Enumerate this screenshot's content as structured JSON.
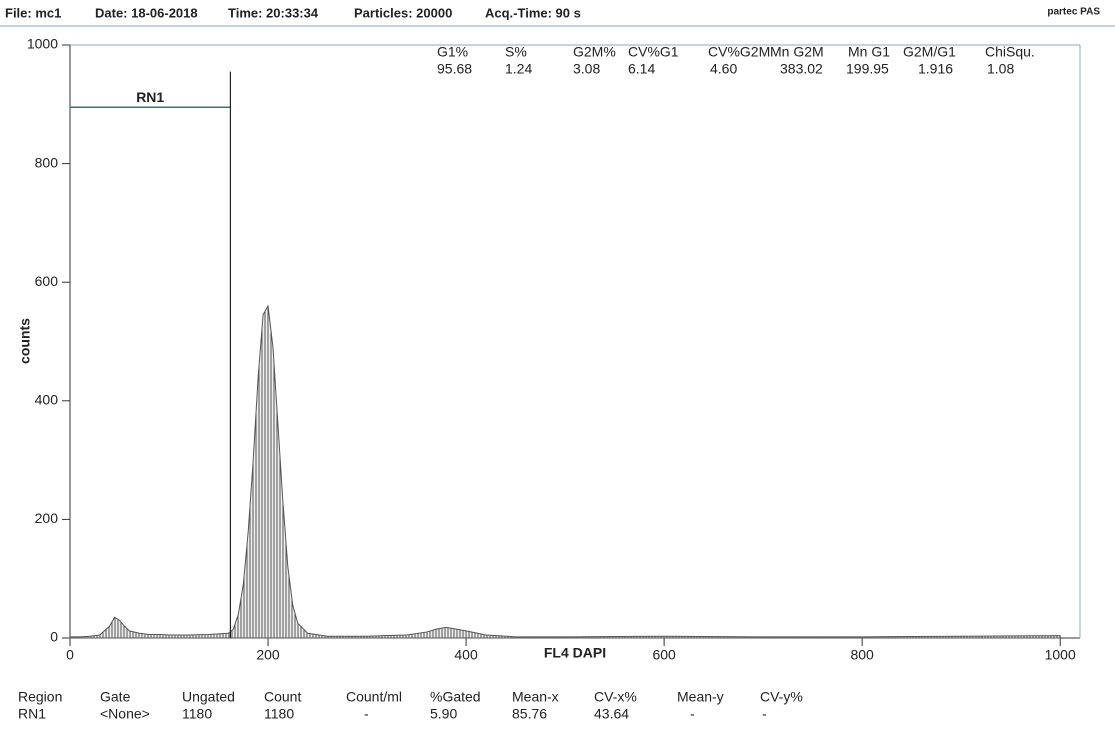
{
  "header": {
    "file": "File: mc1",
    "date": "Date: 18-06-2018",
    "time": "Time: 20:33:34",
    "particles": "Particles: 20000",
    "acq_time": "Acq.-Time: 90 s",
    "brand": "partec PAS"
  },
  "chart_data": {
    "type": "area",
    "x_label": "FL4  DAPI",
    "y_label": "counts",
    "series": [
      {
        "color": "#555555",
        "x": [
          0,
          10,
          20,
          30,
          40,
          45,
          50,
          55,
          60,
          70,
          80,
          90,
          100,
          120,
          140,
          160,
          165,
          170,
          175,
          180,
          185,
          190,
          195,
          200,
          205,
          210,
          215,
          220,
          225,
          230,
          240,
          260,
          300,
          340,
          360,
          370,
          380,
          390,
          400,
          420,
          450,
          500,
          600,
          700,
          800,
          900,
          1000
        ],
        "values": [
          2,
          2,
          3,
          5,
          20,
          35,
          30,
          20,
          12,
          8,
          6,
          6,
          5,
          5,
          6,
          8,
          15,
          40,
          90,
          180,
          300,
          440,
          545,
          560,
          490,
          360,
          230,
          120,
          55,
          25,
          8,
          3,
          3,
          5,
          10,
          15,
          18,
          15,
          12,
          5,
          2,
          2,
          3,
          2,
          2,
          3,
          4
        ]
      }
    ],
    "xlim": [
      0,
      1020
    ],
    "ylim": [
      0,
      1000
    ],
    "xticks": [
      0,
      200,
      400,
      600,
      800,
      1000
    ],
    "yticks": [
      0,
      200,
      400,
      600,
      800,
      1000
    ],
    "region": {
      "label": "RN1",
      "x": [
        0,
        162
      ],
      "y": 895,
      "top": 955
    }
  },
  "stats": {
    "headers": [
      "G1%",
      "S%",
      "G2M%",
      "CV%G1",
      "CV%G2M",
      "Mn G2M",
      "Mn G1",
      "G2M/G1",
      "ChiSqu."
    ],
    "values": [
      "95.68",
      "1.24",
      "3.08",
      "6.14",
      "4.60",
      "383.02",
      "199.95",
      "1.916",
      "1.08"
    ]
  },
  "region_table": {
    "headers": [
      "Region",
      "Gate",
      "Ungated",
      "Count",
      "Count/ml",
      "%Gated",
      "Mean-x",
      "CV-x%",
      "Mean-y",
      "CV-y%"
    ],
    "rows": [
      [
        "RN1",
        "<None>",
        "1180",
        "1180",
        "-",
        "5.90",
        "85.76",
        "43.64",
        "-",
        "-"
      ]
    ]
  }
}
